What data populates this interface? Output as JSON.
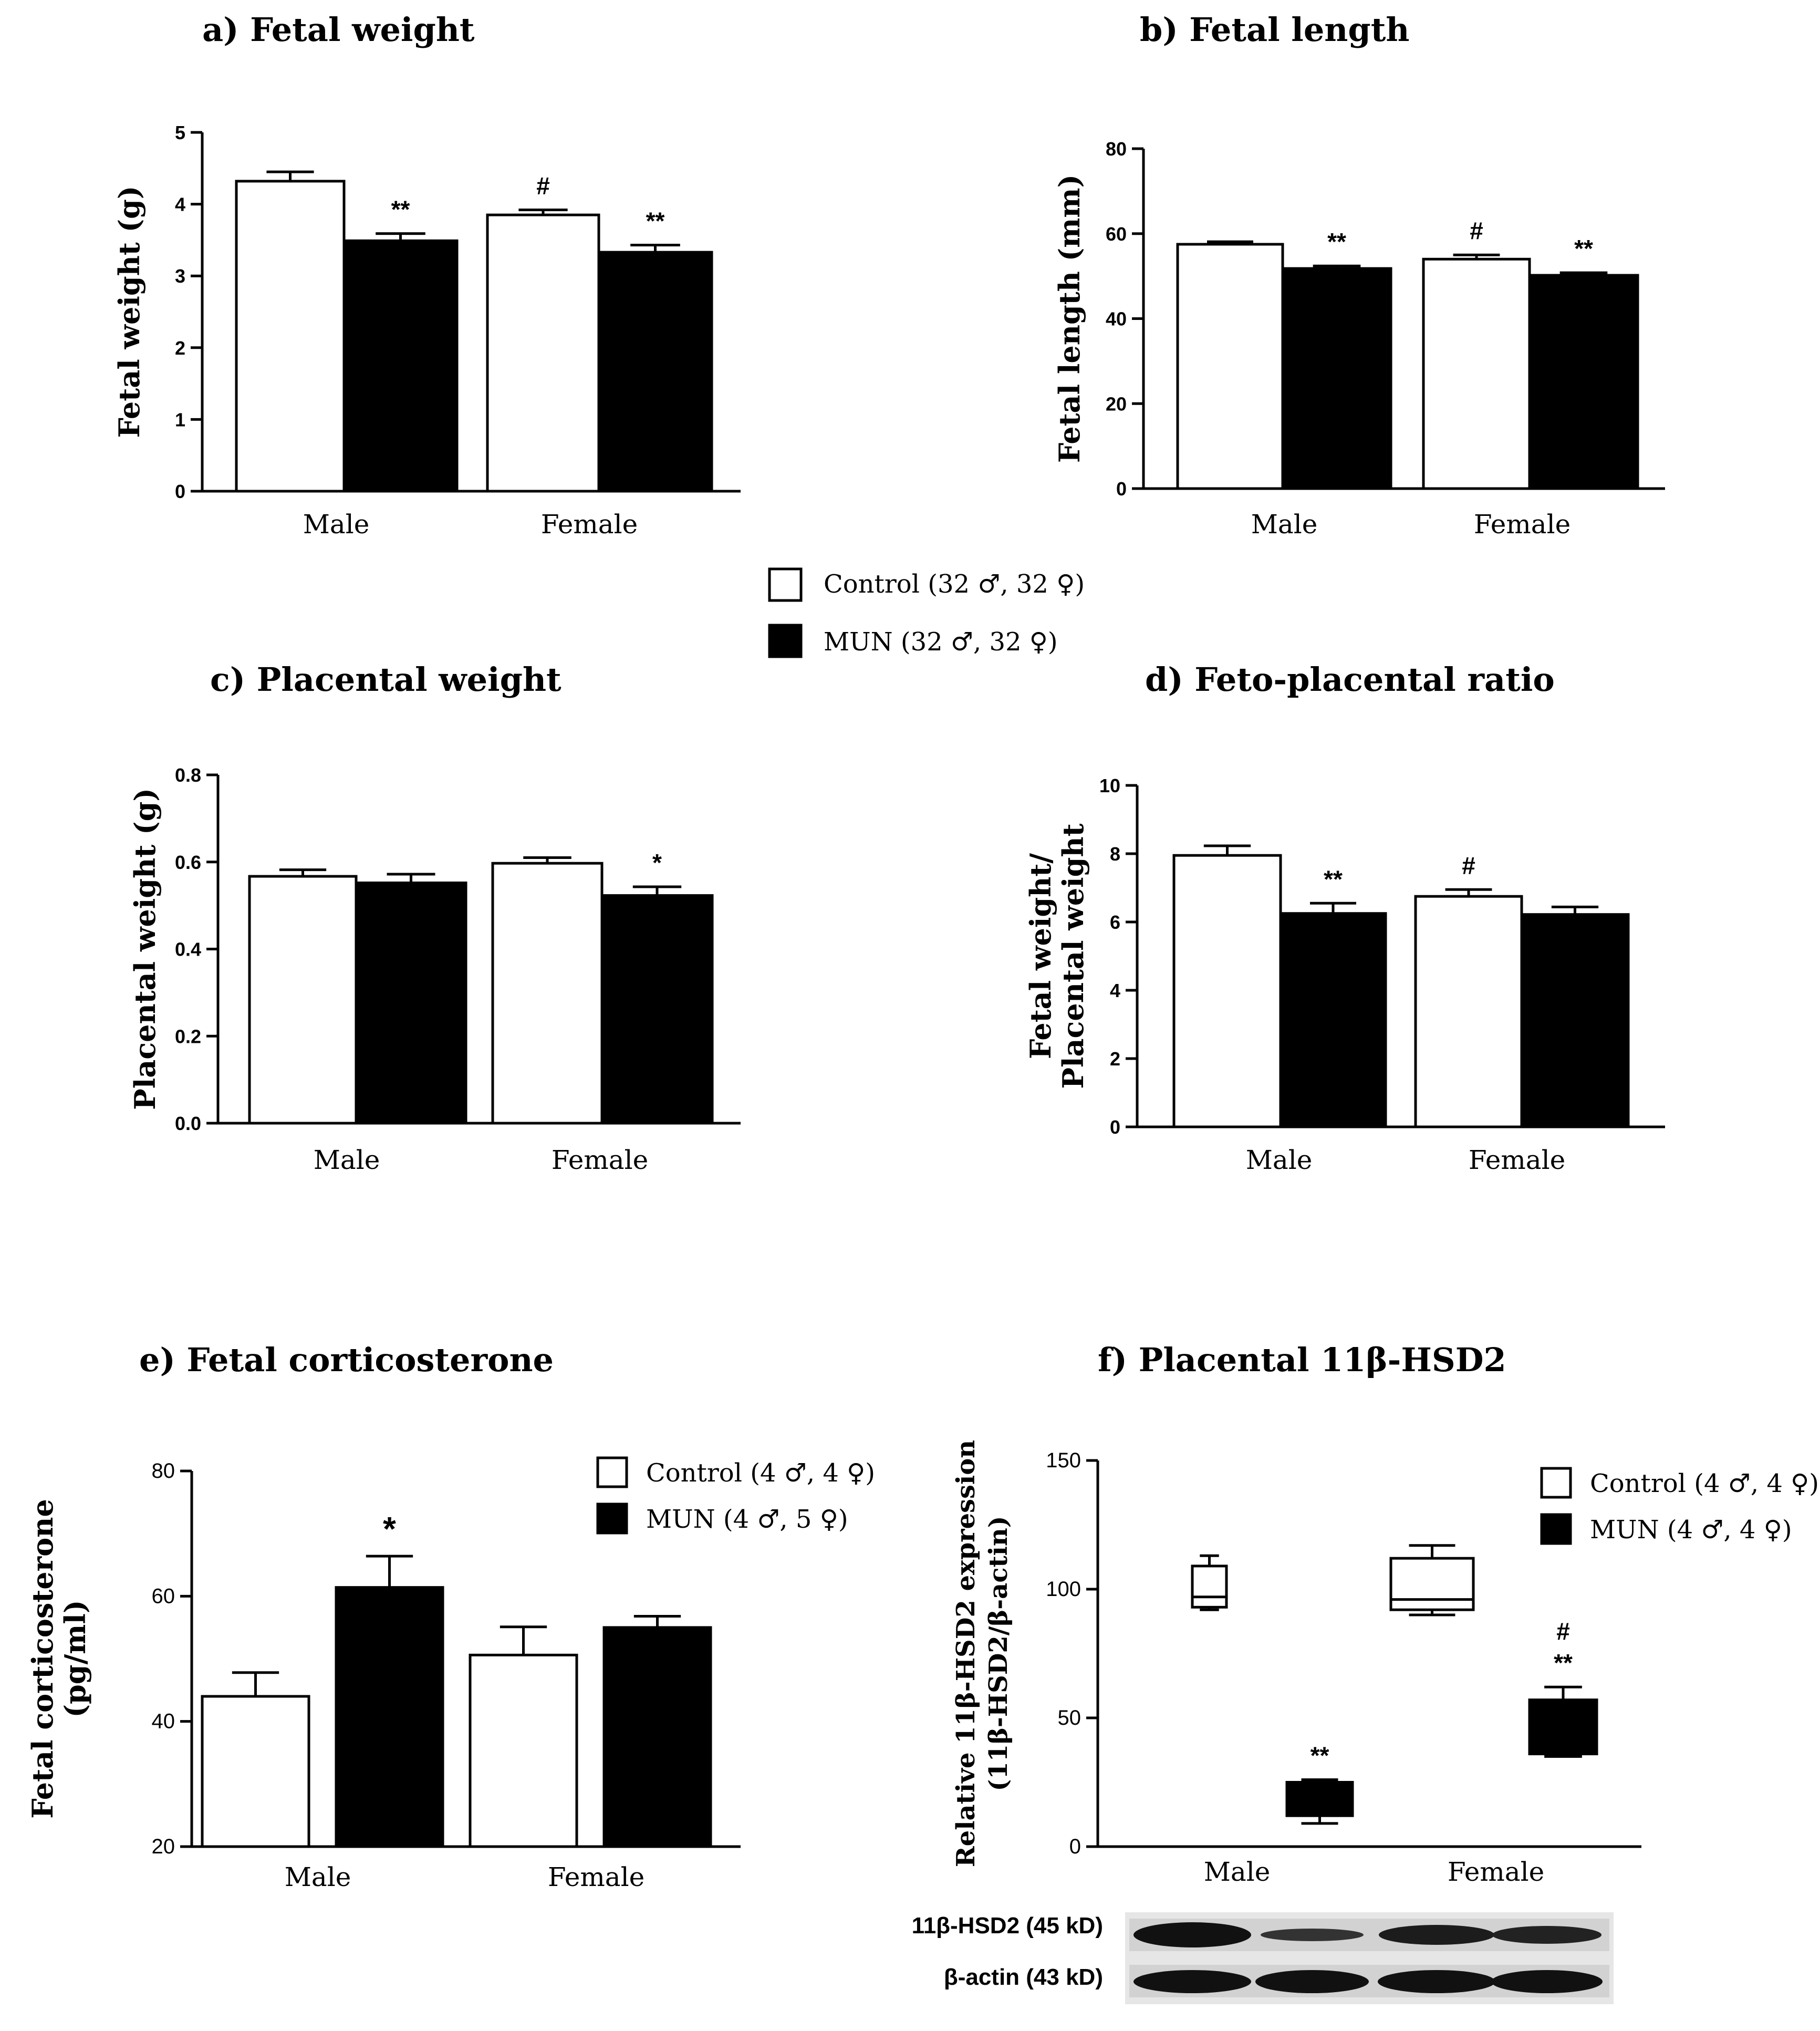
{
  "legend_top": [
    {
      "label": "Control  (32 ♂, 32 ♀)",
      "color": "#ffffff"
    },
    {
      "label": "MUN (32 ♂, 32 ♀)",
      "color": "#000000"
    }
  ],
  "colors": {
    "control": "#ffffff",
    "mun": "#000000"
  },
  "blot": {
    "labels": [
      "11β-HSD2 (45 kD)",
      "β-actin (43 kD)"
    ]
  },
  "chart_data": [
    {
      "id": "a",
      "type": "bar",
      "title": "a) Fetal weight",
      "ylabel": "Fetal weight (g)",
      "ylabel_lines": [
        "Fetal weight (g)"
      ],
      "categories": [
        "Male",
        "Female"
      ],
      "ylim": [
        0,
        5
      ],
      "yticks": [
        "0",
        "1",
        "2",
        "3",
        "4",
        "5"
      ],
      "series": [
        {
          "name": "Control",
          "values": [
            4.32,
            3.85
          ],
          "errors": [
            0.13,
            0.07
          ]
        },
        {
          "name": "MUN",
          "values": [
            3.49,
            3.33
          ],
          "errors": [
            0.1,
            0.1
          ]
        }
      ],
      "annotations": [
        {
          "cat": 0,
          "series": 1,
          "text": "**"
        },
        {
          "cat": 1,
          "series": 0,
          "text": "#"
        },
        {
          "cat": 1,
          "series": 1,
          "text": "**"
        }
      ]
    },
    {
      "id": "b",
      "type": "bar",
      "title": "b) Fetal length",
      "ylabel": "Fetal length (mm)",
      "ylabel_lines": [
        "Fetal length (mm)"
      ],
      "categories": [
        "Male",
        "Female"
      ],
      "ylim": [
        0,
        80
      ],
      "yticks": [
        "0",
        "20",
        "40",
        "60",
        "80"
      ],
      "series": [
        {
          "name": "Control",
          "values": [
            57.5,
            54.0
          ],
          "errors": [
            0.6,
            1.0
          ]
        },
        {
          "name": "MUN",
          "values": [
            51.8,
            50.2
          ],
          "errors": [
            0.6,
            0.6
          ]
        }
      ],
      "annotations": [
        {
          "cat": 0,
          "series": 1,
          "text": "**"
        },
        {
          "cat": 1,
          "series": 0,
          "text": "#"
        },
        {
          "cat": 1,
          "series": 1,
          "text": "**"
        }
      ]
    },
    {
      "id": "c",
      "type": "bar",
      "title": "c) Placental weight",
      "ylabel": "Placental weight (g)",
      "ylabel_lines": [
        "Placental weight (g)"
      ],
      "categories": [
        "Male",
        "Female"
      ],
      "ylim": [
        0,
        0.8
      ],
      "yticks": [
        "0.0",
        "0.2",
        "0.4",
        "0.6",
        "0.8"
      ],
      "series": [
        {
          "name": "Control",
          "values": [
            0.567,
            0.597
          ],
          "errors": [
            0.015,
            0.013
          ]
        },
        {
          "name": "MUN",
          "values": [
            0.552,
            0.523
          ],
          "errors": [
            0.02,
            0.02
          ]
        }
      ],
      "annotations": [
        {
          "cat": 1,
          "series": 1,
          "text": "*"
        }
      ]
    },
    {
      "id": "d",
      "type": "bar",
      "title": "d) Feto-placental ratio",
      "ylabel": "Fetal weight/ Placental weight",
      "ylabel_lines": [
        "Fetal weight/",
        "Placental weight"
      ],
      "categories": [
        "Male",
        "Female"
      ],
      "ylim": [
        0,
        10
      ],
      "yticks": [
        "0",
        "2",
        "4",
        "6",
        "8",
        "10"
      ],
      "series": [
        {
          "name": "Control",
          "values": [
            7.95,
            6.75
          ],
          "errors": [
            0.28,
            0.2
          ]
        },
        {
          "name": "MUN",
          "values": [
            6.25,
            6.22
          ],
          "errors": [
            0.3,
            0.22
          ]
        }
      ],
      "annotations": [
        {
          "cat": 0,
          "series": 1,
          "text": "**"
        },
        {
          "cat": 1,
          "series": 0,
          "text": "#"
        }
      ]
    },
    {
      "id": "e",
      "type": "bar",
      "title": "e) Fetal corticosterone",
      "ylabel": "Fetal corticosterone (pg/ml)",
      "ylabel_lines": [
        "Fetal corticosterone",
        "(pg/ml)"
      ],
      "categories": [
        "Male",
        "Female"
      ],
      "ylim": [
        20,
        80
      ],
      "yticks": [
        "20",
        "40",
        "60",
        "80"
      ],
      "legend": [
        "Control  (4 ♂, 4 ♀)",
        "MUN  (4 ♂, 5 ♀)"
      ],
      "series": [
        {
          "name": "Control",
          "values": [
            44.0,
            50.6
          ],
          "errors": [
            3.8,
            4.5
          ]
        },
        {
          "name": "MUN",
          "values": [
            61.4,
            55.0
          ],
          "errors": [
            5.0,
            1.8
          ]
        }
      ],
      "annotations": [
        {
          "cat": 0,
          "series": 1,
          "text": "*"
        }
      ]
    },
    {
      "id": "f",
      "type": "box",
      "title": "f) Placental 11β-HSD2",
      "ylabel": "Relative 11β-HSD2 expression (11β-HSD2/β-actin)",
      "ylabel_lines": [
        "Relative 11β-HSD2 expression",
        "(11β-HSD2/β-actin)"
      ],
      "categories": [
        "Male",
        "Female"
      ],
      "ylim": [
        0,
        150
      ],
      "yticks": [
        "0",
        "50",
        "100",
        "150"
      ],
      "legend": [
        "Control  (4 ♂, 4 ♀)",
        "MUN  (4 ♂, 4 ♀)"
      ],
      "series": [
        {
          "name": "Control",
          "boxes": [
            {
              "min": 92,
              "q1": 93,
              "median": 97,
              "q3": 109,
              "max": 113
            },
            {
              "min": 90,
              "q1": 92,
              "median": 96,
              "q3": 112,
              "max": 117
            }
          ]
        },
        {
          "name": "MUN",
          "boxes": [
            {
              "min": 9,
              "q1": 12,
              "median": 13,
              "q3": 25,
              "max": 26
            },
            {
              "min": 35,
              "q1": 36,
              "median": 37,
              "q3": 57,
              "max": 62
            }
          ]
        }
      ],
      "annotations": [
        {
          "cat": 0,
          "series": 1,
          "text": "**"
        },
        {
          "cat": 1,
          "series": 1,
          "text": "**"
        },
        {
          "cat": 1,
          "series": 1,
          "text": "#"
        }
      ]
    }
  ]
}
